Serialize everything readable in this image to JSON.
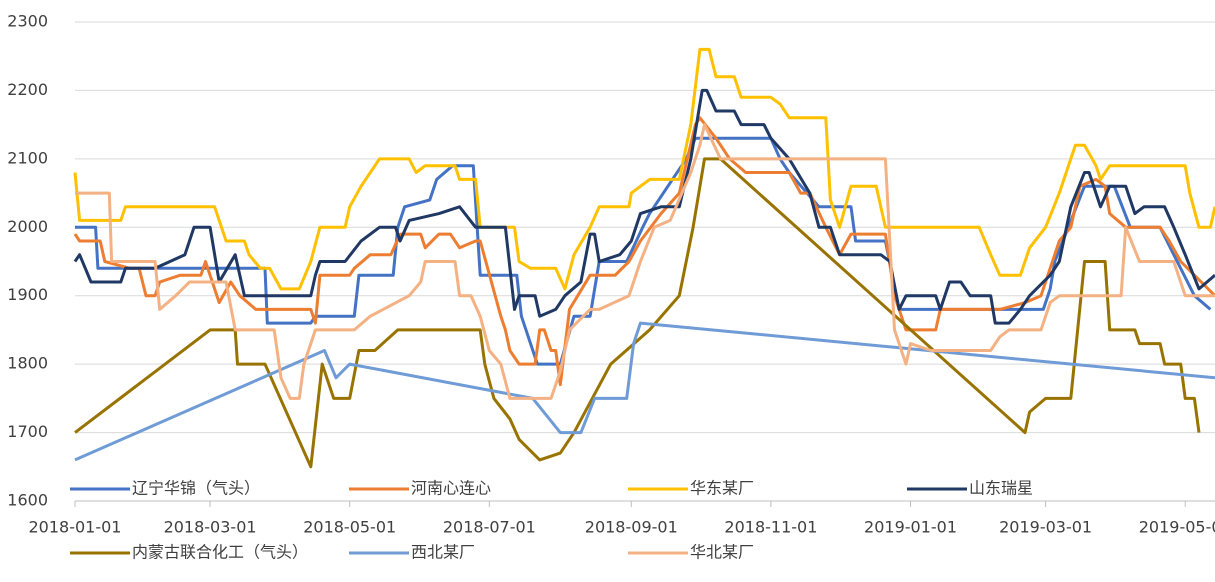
{
  "chart_data": {
    "type": "line",
    "legend": "bottom",
    "grid": true,
    "xlim": [
      "2018-01-01",
      "2019-05-14"
    ],
    "xticks": [
      "2018-01-01",
      "2018-03-01",
      "2018-05-01",
      "2018-07-01",
      "2018-09-01",
      "2018-11-01",
      "2019-01-01",
      "2019-03-01",
      "2019-05-01"
    ],
    "ylim": [
      1600,
      2300
    ],
    "yticks": [
      1600,
      1700,
      1800,
      1900,
      2000,
      2100,
      2200,
      2300
    ],
    "series": [
      {
        "name": "辽宁华锦（气头）",
        "color": "#4472c4",
        "x": [
          "2018-01-01",
          "2018-01-10",
          "2018-01-11",
          "2018-03-25",
          "2018-03-26",
          "2018-04-14",
          "2018-04-16",
          "2018-05-03",
          "2018-05-05",
          "2018-05-20",
          "2018-05-22",
          "2018-05-25",
          "2018-06-05",
          "2018-06-08",
          "2018-06-15",
          "2018-06-24",
          "2018-06-27",
          "2018-07-13",
          "2018-07-15",
          "2018-07-22",
          "2018-08-01",
          "2018-08-07",
          "2018-08-14",
          "2018-08-18",
          "2018-08-30",
          "2018-09-06",
          "2018-09-09",
          "2018-09-25",
          "2018-09-29",
          "2018-11-01",
          "2018-11-05",
          "2018-11-09",
          "2018-11-22",
          "2018-12-06",
          "2018-12-08",
          "2018-12-21",
          "2018-12-27",
          "2019-02-28",
          "2019-03-03",
          "2019-03-05",
          "2019-03-18",
          "2019-03-31",
          "2019-04-07",
          "2019-04-20",
          "2019-04-26",
          "2019-05-05",
          "2019-05-12"
        ],
        "values": [
          2000,
          2000,
          1940,
          1940,
          1860,
          1860,
          1870,
          1870,
          1930,
          1930,
          2000,
          2030,
          2040,
          2070,
          2090,
          2090,
          1930,
          1930,
          1870,
          1800,
          1800,
          1870,
          1870,
          1950,
          1950,
          2000,
          2020,
          2100,
          2130,
          2130,
          2100,
          2080,
          2030,
          2030,
          1980,
          1980,
          1880,
          1880,
          1910,
          1950,
          2060,
          2060,
          2000,
          2000,
          1960,
          1900,
          1880
        ]
      },
      {
        "name": "河南心连心",
        "color": "#ed7d31",
        "x": [
          "2018-01-01",
          "2018-01-03",
          "2018-01-12",
          "2018-01-14",
          "2018-01-25",
          "2018-01-29",
          "2018-02-01",
          "2018-02-05",
          "2018-02-07",
          "2018-02-16",
          "2018-02-25",
          "2018-02-27",
          "2018-03-05",
          "2018-03-10",
          "2018-03-14",
          "2018-03-21",
          "2018-04-14",
          "2018-04-16",
          "2018-04-18",
          "2018-05-01",
          "2018-05-03",
          "2018-05-10",
          "2018-05-19",
          "2018-05-23",
          "2018-06-01",
          "2018-06-03",
          "2018-06-09",
          "2018-06-14",
          "2018-06-18",
          "2018-06-25",
          "2018-06-27",
          "2018-07-06",
          "2018-07-08",
          "2018-07-10",
          "2018-07-14",
          "2018-07-21",
          "2018-07-23",
          "2018-07-25",
          "2018-07-28",
          "2018-07-30",
          "2018-08-01",
          "2018-08-05",
          "2018-08-14",
          "2018-08-25",
          "2018-08-31",
          "2018-09-05",
          "2018-09-14",
          "2018-09-22",
          "2018-09-29",
          "2018-10-01",
          "2018-10-08",
          "2018-10-14",
          "2018-10-21",
          "2018-11-09",
          "2018-11-14",
          "2018-11-18",
          "2018-11-25",
          "2018-12-01",
          "2018-12-06",
          "2018-12-21",
          "2018-12-25",
          "2018-12-30",
          "2019-01-12",
          "2019-01-14",
          "2019-02-09",
          "2019-02-20",
          "2019-02-27",
          "2019-03-07",
          "2019-03-12",
          "2019-03-16",
          "2019-03-23",
          "2019-03-27",
          "2019-03-29",
          "2019-04-05",
          "2019-04-20",
          "2019-04-24",
          "2019-04-29",
          "2019-05-05",
          "2019-05-14"
        ],
        "values": [
          1990,
          1980,
          1980,
          1950,
          1940,
          1940,
          1900,
          1900,
          1920,
          1930,
          1930,
          1950,
          1890,
          1920,
          1900,
          1880,
          1880,
          1860,
          1930,
          1930,
          1940,
          1960,
          1960,
          1990,
          1990,
          1970,
          1990,
          1990,
          1970,
          1980,
          1980,
          1870,
          1850,
          1820,
          1800,
          1800,
          1850,
          1850,
          1820,
          1820,
          1770,
          1880,
          1930,
          1930,
          1950,
          1980,
          2020,
          2050,
          2150,
          2160,
          2130,
          2100,
          2080,
          2080,
          2050,
          2050,
          2000,
          1960,
          1990,
          1990,
          1900,
          1850,
          1850,
          1880,
          1880,
          1890,
          1900,
          1980,
          2000,
          2060,
          2070,
          2060,
          2020,
          2000,
          2000,
          1980,
          1950,
          1930,
          1900
        ]
      },
      {
        "name": "华东某厂",
        "color": "#ffc000",
        "x": [
          "2018-01-01",
          "2018-01-03",
          "2018-01-21",
          "2018-01-23",
          "2018-03-03",
          "2018-03-05",
          "2018-03-08",
          "2018-03-16",
          "2018-03-18",
          "2018-03-23",
          "2018-03-27",
          "2018-04-01",
          "2018-04-09",
          "2018-04-14",
          "2018-04-18",
          "2018-04-29",
          "2018-05-01",
          "2018-05-06",
          "2018-05-14",
          "2018-05-27",
          "2018-05-30",
          "2018-06-03",
          "2018-06-16",
          "2018-06-18",
          "2018-06-25",
          "2018-06-27",
          "2018-07-12",
          "2018-07-14",
          "2018-07-19",
          "2018-07-30",
          "2018-08-03",
          "2018-08-07",
          "2018-08-14",
          "2018-08-18",
          "2018-08-31",
          "2018-09-01",
          "2018-09-09",
          "2018-09-22",
          "2018-09-27",
          "2018-10-01",
          "2018-10-05",
          "2018-10-08",
          "2018-10-16",
          "2018-10-19",
          "2018-11-01",
          "2018-11-05",
          "2018-11-09",
          "2018-11-25",
          "2018-11-27",
          "2018-12-01",
          "2018-12-06",
          "2018-12-17",
          "2018-12-21",
          "2019-01-31",
          "2019-02-05",
          "2019-02-09",
          "2019-02-18",
          "2019-02-22",
          "2019-03-01",
          "2019-03-07",
          "2019-03-14",
          "2019-03-18",
          "2019-03-23",
          "2019-03-25",
          "2019-03-29",
          "2019-05-01",
          "2019-05-03",
          "2019-05-07",
          "2019-05-12",
          "2019-05-14"
        ],
        "values": [
          2080,
          2010,
          2010,
          2030,
          2030,
          2010,
          1980,
          1980,
          1960,
          1940,
          1940,
          1910,
          1910,
          1950,
          2000,
          2000,
          2030,
          2060,
          2100,
          2100,
          2080,
          2090,
          2090,
          2070,
          2070,
          2000,
          2000,
          1950,
          1940,
          1940,
          1910,
          1960,
          2000,
          2030,
          2030,
          2050,
          2070,
          2070,
          2150,
          2260,
          2260,
          2220,
          2220,
          2190,
          2190,
          2180,
          2160,
          2160,
          2040,
          2000,
          2060,
          2060,
          2000,
          2000,
          1960,
          1930,
          1930,
          1970,
          2000,
          2050,
          2120,
          2120,
          2090,
          2070,
          2090,
          2090,
          2050,
          2000,
          2000,
          2030
        ]
      },
      {
        "name": "山东瑞星",
        "color": "#203864",
        "x": [
          "2018-01-01",
          "2018-01-03",
          "2018-01-08",
          "2018-01-21",
          "2018-01-23",
          "2018-02-05",
          "2018-02-18",
          "2018-02-22",
          "2018-03-01",
          "2018-03-05",
          "2018-03-12",
          "2018-03-16",
          "2018-04-14",
          "2018-04-16",
          "2018-04-18",
          "2018-04-29",
          "2018-05-06",
          "2018-05-14",
          "2018-05-21",
          "2018-05-23",
          "2018-05-27",
          "2018-06-09",
          "2018-06-18",
          "2018-06-25",
          "2018-07-08",
          "2018-07-12",
          "2018-07-14",
          "2018-07-21",
          "2018-07-23",
          "2018-07-30",
          "2018-08-03",
          "2018-08-10",
          "2018-08-14",
          "2018-08-16",
          "2018-08-18",
          "2018-08-27",
          "2018-09-01",
          "2018-09-05",
          "2018-09-14",
          "2018-09-22",
          "2018-09-27",
          "2018-10-02",
          "2018-10-04",
          "2018-10-08",
          "2018-10-16",
          "2018-10-19",
          "2018-10-29",
          "2018-11-01",
          "2018-11-09",
          "2018-11-18",
          "2018-11-22",
          "2018-11-27",
          "2018-12-01",
          "2018-12-19",
          "2018-12-23",
          "2018-12-27",
          "2018-12-30",
          "2019-01-12",
          "2019-01-14",
          "2019-01-18",
          "2019-01-23",
          "2019-01-27",
          "2019-02-05",
          "2019-02-07",
          "2019-02-13",
          "2019-02-18",
          "2019-02-22",
          "2019-03-03",
          "2019-03-07",
          "2019-03-12",
          "2019-03-18",
          "2019-03-20",
          "2019-03-25",
          "2019-03-29",
          "2019-04-05",
          "2019-04-09",
          "2019-04-13",
          "2019-04-22",
          "2019-04-26",
          "2019-05-01",
          "2019-05-07",
          "2019-05-14"
        ],
        "values": [
          1950,
          1960,
          1920,
          1920,
          1940,
          1940,
          1960,
          2000,
          2000,
          1920,
          1960,
          1900,
          1900,
          1930,
          1950,
          1950,
          1980,
          2000,
          2000,
          1980,
          2010,
          2020,
          2030,
          2000,
          2000,
          1880,
          1900,
          1900,
          1870,
          1880,
          1900,
          1920,
          1990,
          1990,
          1950,
          1960,
          1980,
          2020,
          2030,
          2030,
          2100,
          2200,
          2200,
          2170,
          2170,
          2150,
          2150,
          2130,
          2100,
          2050,
          2000,
          2000,
          1960,
          1960,
          1950,
          1880,
          1900,
          1900,
          1880,
          1920,
          1920,
          1900,
          1900,
          1860,
          1860,
          1880,
          1900,
          1930,
          1950,
          2030,
          2080,
          2080,
          2030,
          2060,
          2060,
          2020,
          2030,
          2030,
          2000,
          1960,
          1910,
          1930
        ]
      },
      {
        "name": "内蒙古联合化工（气头）",
        "color": "#997300",
        "x": [
          "2018-01-01",
          "2018-03-01",
          "2018-03-12",
          "2018-03-13",
          "2018-03-25",
          "2018-04-14",
          "2018-04-19",
          "2018-04-24",
          "2018-05-01",
          "2018-05-05",
          "2018-05-12",
          "2018-05-22",
          "2018-06-27",
          "2018-06-29",
          "2018-07-03",
          "2018-07-10",
          "2018-07-14",
          "2018-07-23",
          "2018-08-01",
          "2018-08-07",
          "2018-08-23",
          "2018-09-09",
          "2018-09-22",
          "2018-09-28",
          "2018-10-03",
          "2018-10-10",
          "2019-02-20",
          "2019-02-22",
          "2019-03-01",
          "2019-03-12",
          "2019-03-18",
          "2019-03-27",
          "2019-03-29",
          "2019-04-09",
          "2019-04-11",
          "2019-04-20",
          "2019-04-22",
          "2019-04-29",
          "2019-05-01",
          "2019-05-05",
          "2019-05-07"
        ],
        "values": [
          1700,
          1850,
          1850,
          1800,
          1800,
          1650,
          1800,
          1750,
          1750,
          1820,
          1820,
          1850,
          1850,
          1800,
          1750,
          1720,
          1690,
          1660,
          1670,
          1700,
          1800,
          1850,
          1900,
          2000,
          2100,
          2100,
          1700,
          1730,
          1750,
          1750,
          1950,
          1950,
          1850,
          1850,
          1830,
          1830,
          1800,
          1800,
          1750,
          1750,
          1700
        ]
      },
      {
        "name": "西北某厂",
        "color": "#6f9bd6",
        "x": [
          "2018-01-01",
          "2018-04-20",
          "2018-04-25",
          "2018-05-01",
          "2018-07-20",
          "2018-08-01",
          "2018-08-10",
          "2018-08-16",
          "2018-08-30",
          "2018-09-02",
          "2018-09-05",
          "2019-05-14"
        ],
        "values": [
          1660,
          1820,
          1780,
          1800,
          1750,
          1700,
          1700,
          1750,
          1750,
          1830,
          1860,
          1780
        ]
      },
      {
        "name": "华北某厂",
        "color": "#f4b183",
        "x": [
          "2018-01-01",
          "2018-01-16",
          "2018-01-17",
          "2018-02-05",
          "2018-02-07",
          "2018-02-14",
          "2018-02-20",
          "2018-03-08",
          "2018-03-12",
          "2018-03-29",
          "2018-04-01",
          "2018-04-05",
          "2018-04-09",
          "2018-04-11",
          "2018-04-16",
          "2018-05-03",
          "2018-05-10",
          "2018-05-27",
          "2018-06-01",
          "2018-06-03",
          "2018-06-16",
          "2018-06-18",
          "2018-06-23",
          "2018-06-27",
          "2018-07-01",
          "2018-07-06",
          "2018-07-10",
          "2018-07-28",
          "2018-08-01",
          "2018-08-05",
          "2018-08-14",
          "2018-08-18",
          "2018-08-31",
          "2018-09-05",
          "2018-09-11",
          "2018-09-18",
          "2018-09-27",
          "2018-10-01",
          "2018-10-03",
          "2018-10-10",
          "2018-12-21",
          "2018-12-25",
          "2018-12-30",
          "2019-01-01",
          "2019-01-10",
          "2019-02-05",
          "2019-02-09",
          "2019-02-13",
          "2019-02-27",
          "2019-03-03",
          "2019-03-07",
          "2019-04-03",
          "2019-04-05",
          "2019-04-11",
          "2019-04-26",
          "2019-05-01",
          "2019-05-14"
        ],
        "values": [
          2050,
          2050,
          1950,
          1950,
          1880,
          1900,
          1920,
          1920,
          1850,
          1850,
          1780,
          1750,
          1750,
          1800,
          1850,
          1850,
          1870,
          1900,
          1920,
          1950,
          1950,
          1900,
          1900,
          1870,
          1820,
          1800,
          1750,
          1750,
          1790,
          1850,
          1880,
          1880,
          1900,
          1950,
          2000,
          2010,
          2080,
          2120,
          2150,
          2100,
          2100,
          1850,
          1800,
          1830,
          1820,
          1820,
          1840,
          1850,
          1850,
          1890,
          1900,
          1900,
          2000,
          1950,
          1950,
          1900,
          1900
        ]
      }
    ]
  }
}
